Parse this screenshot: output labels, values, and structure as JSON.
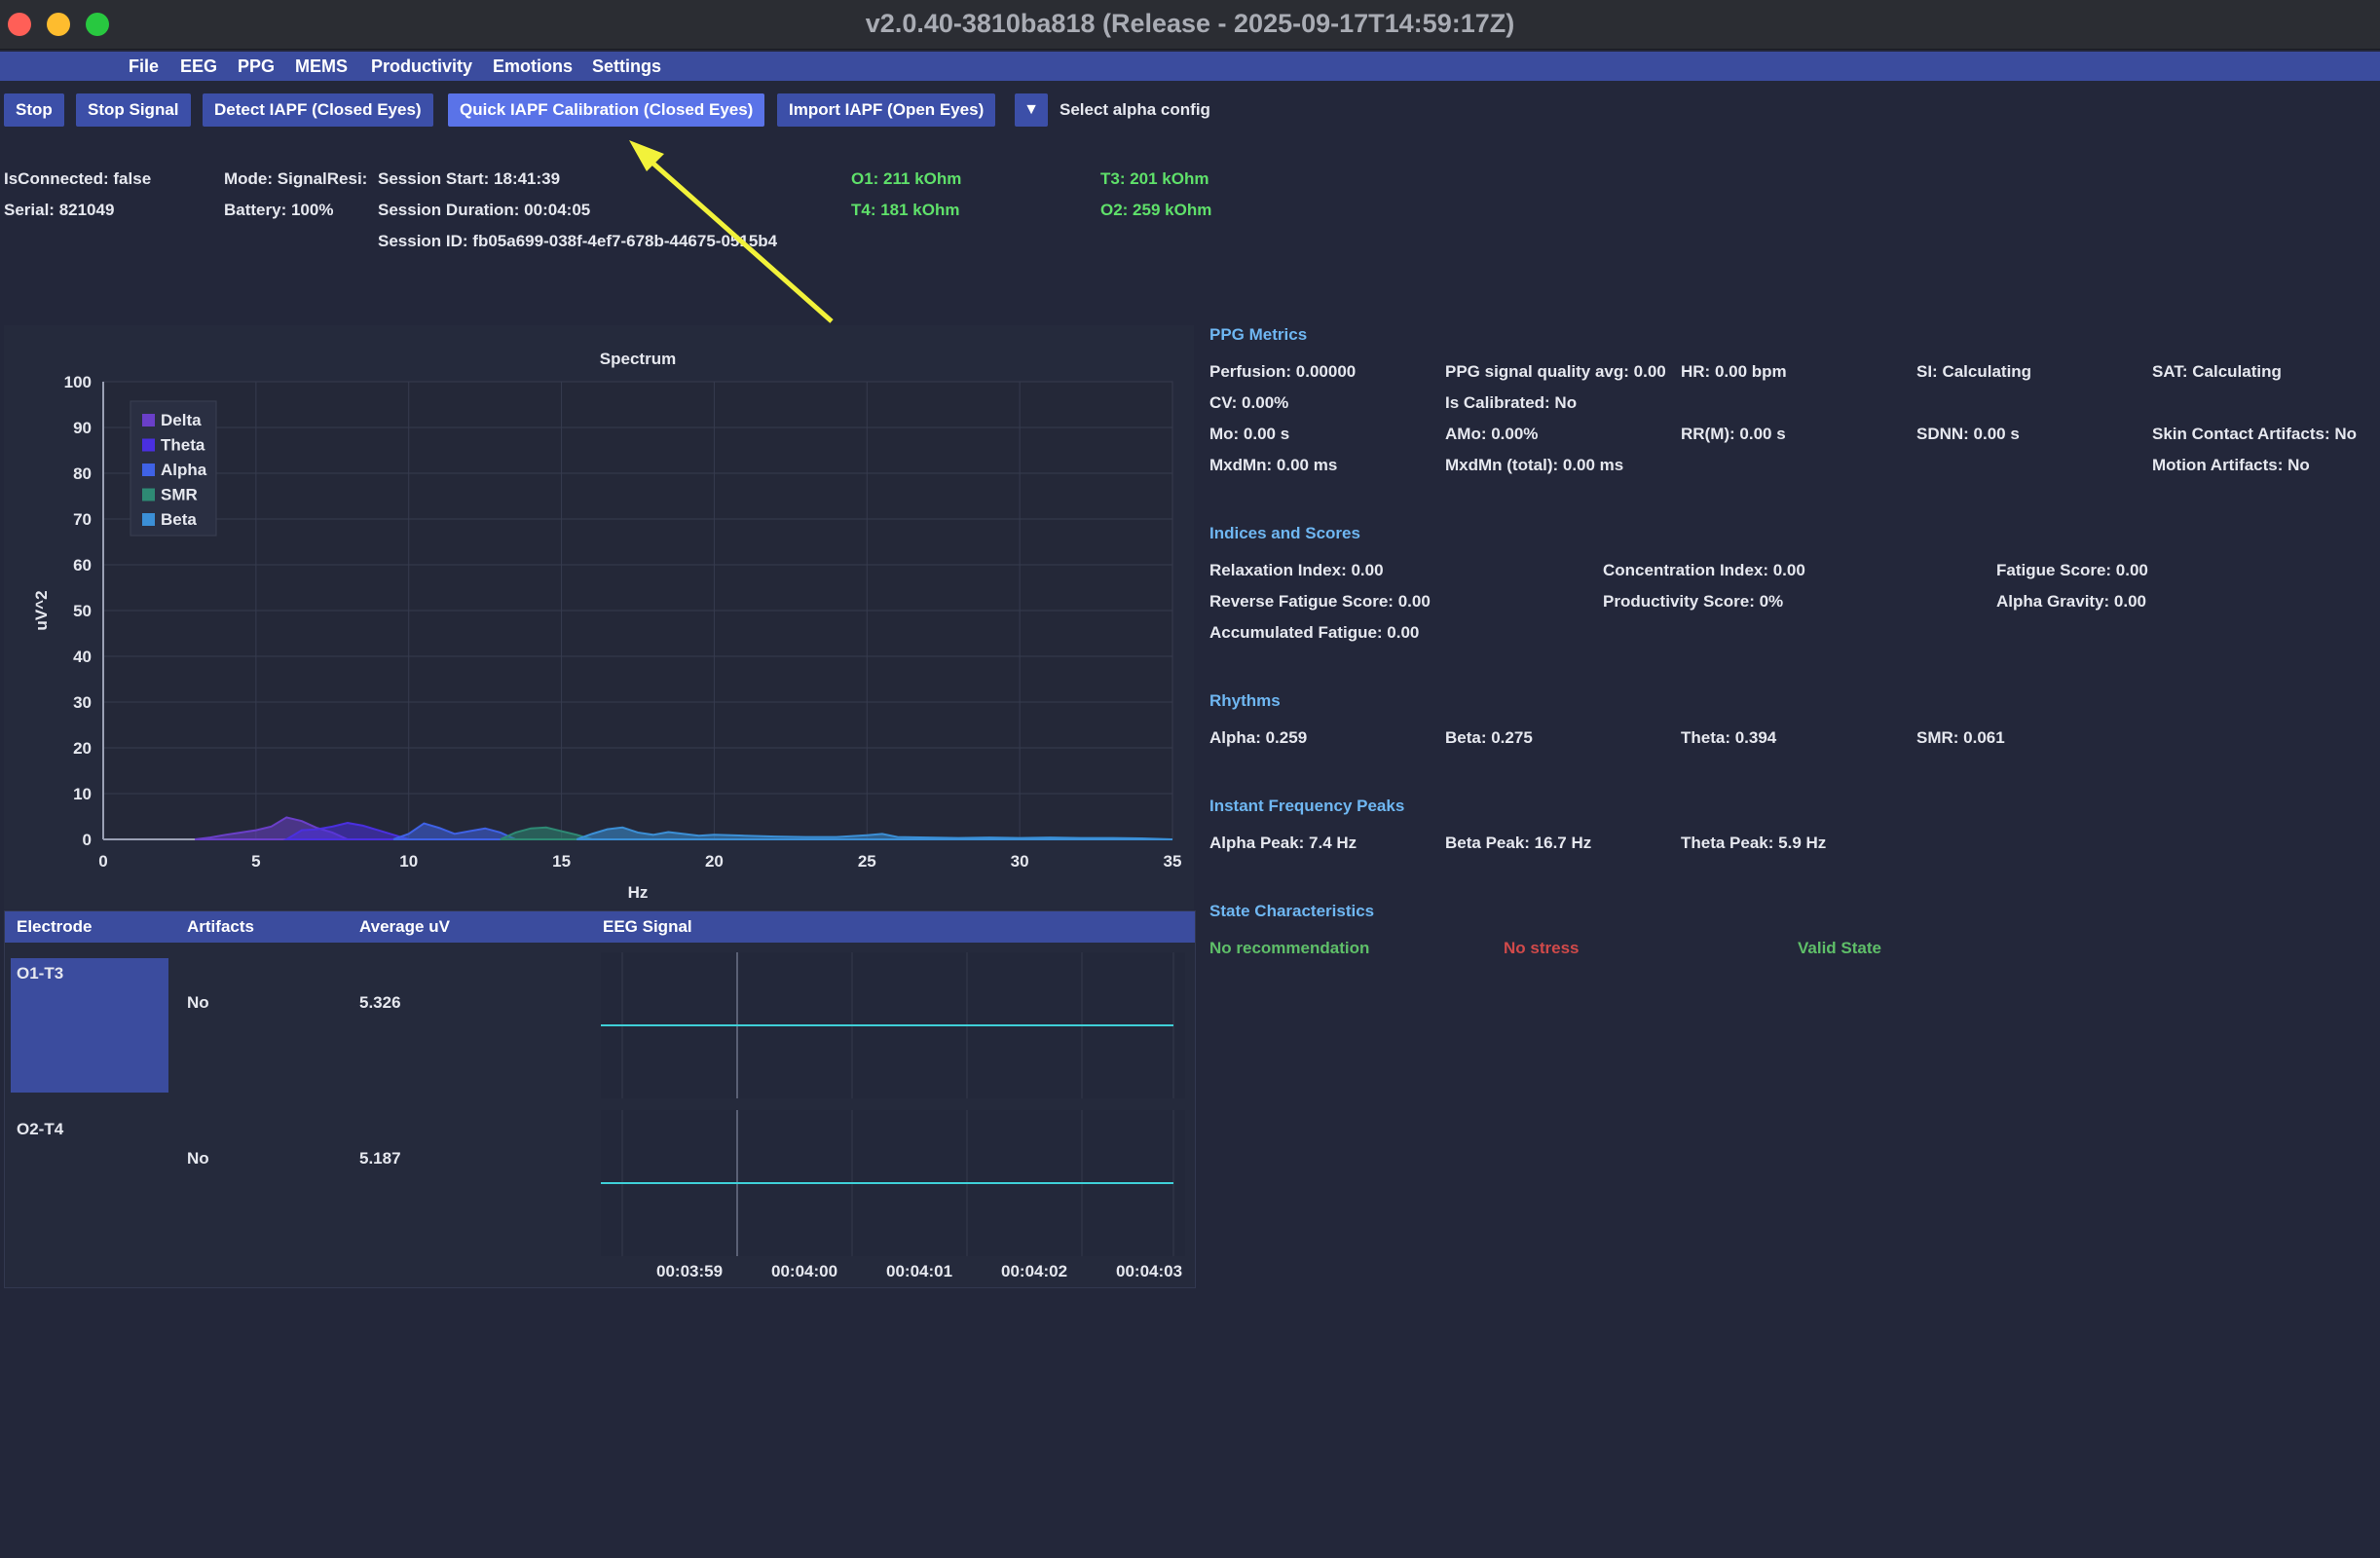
{
  "window": {
    "title": "v2.0.40-3810ba818 (Release - 2025-09-17T14:59:17Z)"
  },
  "menu": [
    "File",
    "EEG",
    "PPG",
    "MEMS",
    "Productivity",
    "Emotions",
    "Settings"
  ],
  "toolbar": {
    "stop": "Stop",
    "stop_signal": "Stop Signal",
    "detect_iapf": "Detect IAPF (Closed Eyes)",
    "quick_iapf": "Quick IAPF Calibration (Closed Eyes)",
    "import_iapf": "Import IAPF (Open Eyes)",
    "dropdown_icon": "▼",
    "select_alpha": "Select alpha config"
  },
  "status": {
    "is_connected": "IsConnected: false",
    "serial": "Serial: 821049",
    "mode": "Mode: SignalResi:",
    "battery": "Battery: 100%",
    "session_start": "Session Start: 18:41:39",
    "session_duration": "Session Duration: 00:04:05",
    "session_id": "Session ID: fb05a699-038f-4ef7-678b-44675-0515b4",
    "o1": "O1: 211 kOhm",
    "t4": "T4: 181 kOhm",
    "t3": "T3: 201 kOhm",
    "o2": "O2: 259 kOhm",
    "impedance_color": "#5fe06a"
  },
  "chart_data": {
    "type": "area",
    "title": "Spectrum",
    "xlabel": "Hz",
    "ylabel": "uV^2",
    "xlim": [
      0,
      35
    ],
    "ylim": [
      0,
      100
    ],
    "x_ticks": [
      0,
      5,
      10,
      15,
      20,
      25,
      30,
      35
    ],
    "y_ticks": [
      0,
      10,
      20,
      30,
      40,
      50,
      60,
      70,
      80,
      90,
      100
    ],
    "grid": true,
    "legend_position": "top-left",
    "series": [
      {
        "name": "Delta",
        "color": "#6a3fc9",
        "x": [
          3,
          3.5,
          4,
          4.5,
          5,
          5.5,
          6,
          6.5,
          7,
          7.5,
          8
        ],
        "values": [
          0,
          0.4,
          1,
          1.5,
          2,
          2.8,
          4.8,
          4,
          2.5,
          1.5,
          0
        ]
      },
      {
        "name": "Theta",
        "color": "#4a2fe0",
        "x": [
          6,
          6.5,
          7,
          7.5,
          8,
          8.5,
          9,
          9.5,
          10
        ],
        "values": [
          0,
          2,
          2.2,
          2.8,
          3.6,
          3,
          2,
          1,
          0
        ]
      },
      {
        "name": "Alpha",
        "color": "#3f62e6",
        "x": [
          9.5,
          10,
          10.5,
          11,
          11.5,
          12,
          12.5,
          13,
          13.5
        ],
        "values": [
          0,
          1.2,
          3.5,
          2.5,
          1.2,
          1.8,
          2.4,
          1.5,
          0
        ]
      },
      {
        "name": "SMR",
        "color": "#2e8a74",
        "x": [
          13,
          13.5,
          14,
          14.5,
          15,
          15.5,
          16
        ],
        "values": [
          0,
          1.5,
          2.4,
          2.6,
          1.8,
          1,
          0
        ]
      },
      {
        "name": "Beta",
        "color": "#3b8fd6",
        "x": [
          15.5,
          16,
          16.5,
          17,
          17.5,
          18,
          18.5,
          19,
          19.5,
          20,
          21,
          22,
          23,
          24,
          25,
          25.5,
          26,
          27,
          28,
          29,
          30,
          31,
          32,
          33,
          34,
          35
        ],
        "values": [
          0,
          1.2,
          2.2,
          2.6,
          1.5,
          1,
          1.6,
          1.2,
          0.8,
          1,
          0.8,
          0.6,
          0.5,
          0.5,
          0.9,
          1.2,
          0.5,
          0.4,
          0.3,
          0.4,
          0.3,
          0.4,
          0.3,
          0.3,
          0.2,
          0
        ]
      }
    ]
  },
  "table": {
    "headers": [
      "Electrode",
      "Artifacts",
      "Average uV",
      "EEG Signal"
    ],
    "rows": [
      {
        "electrode": "O1-T3",
        "artifacts": "No",
        "average": "5.326"
      },
      {
        "electrode": "O2-T4",
        "artifacts": "No",
        "average": "5.187"
      }
    ],
    "time_ticks": [
      "00:03:59",
      "00:04:00",
      "00:04:01",
      "00:04:02",
      "00:04:03"
    ],
    "signal_color": "#3fd0d8"
  },
  "ppg": {
    "title": "PPG Metrics",
    "perfusion": "Perfusion: 0.00000",
    "signal_quality": "PPG signal quality avg: 0.00",
    "hr": "HR: 0.00 bpm",
    "si": "SI: Calculating",
    "sat": "SAT: Calculating",
    "cv": "CV: 0.00%",
    "is_calibrated": "Is Calibrated: No",
    "mo": "Mo: 0.00 s",
    "amo": "AMo: 0.00%",
    "rrm": "RR(M): 0.00 s",
    "sdnn": "SDNN: 0.00 s",
    "skin_contact": "Skin Contact Artifacts: No",
    "mxdmn": "MxdMn: 0.00 ms",
    "mxdmn_total": "MxdMn (total): 0.00 ms",
    "motion": "Motion Artifacts: No"
  },
  "indices": {
    "title": "Indices and Scores",
    "relaxation": "Relaxation Index: 0.00",
    "concentration": "Concentration Index: 0.00",
    "fatigue": "Fatigue Score: 0.00",
    "reverse_fatigue": "Reverse Fatigue Score: 0.00",
    "productivity": "Productivity Score: 0%",
    "alpha_gravity": "Alpha Gravity: 0.00",
    "accumulated_fatigue": "Accumulated Fatigue: 0.00"
  },
  "rhythms": {
    "title": "Rhythms",
    "alpha": "Alpha: 0.259",
    "beta": "Beta: 0.275",
    "theta": "Theta: 0.394",
    "smr": "SMR: 0.061"
  },
  "peaks": {
    "title": "Instant Frequency Peaks",
    "alpha": "Alpha Peak: 7.4 Hz",
    "beta": "Beta Peak: 16.7 Hz",
    "theta": "Theta Peak: 5.9 Hz"
  },
  "state": {
    "title": "State Characteristics",
    "recommendation": "No recommendation",
    "stress": "No stress",
    "valid": "Valid State"
  },
  "colors": {
    "accent": "#3b4c9e",
    "active_button": "#5a73e8",
    "section_title": "#6fb7f2",
    "annotation_arrow": "#f2f23a"
  }
}
